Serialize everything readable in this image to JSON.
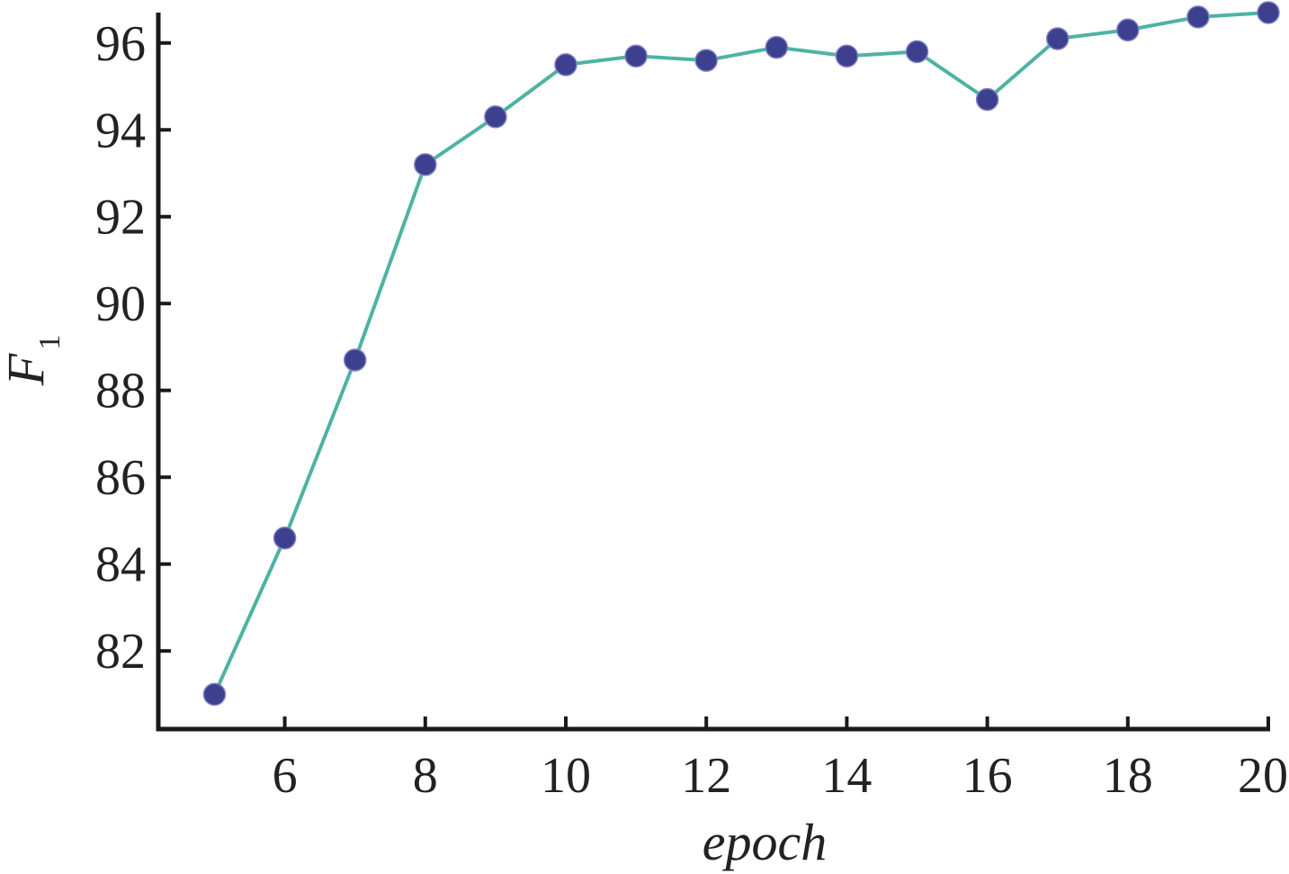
{
  "chart_data": {
    "type": "line",
    "xlabel": "epoch",
    "ylabel": "F",
    "ylabel_subscript": "1",
    "x": [
      5,
      6,
      7,
      8,
      9,
      10,
      11,
      12,
      13,
      14,
      15,
      16,
      17,
      18,
      19,
      20
    ],
    "series": [
      {
        "values": [
          81.0,
          84.6,
          88.7,
          93.2,
          94.3,
          95.5,
          95.7,
          95.6,
          95.9,
          95.7,
          95.8,
          94.7,
          96.1,
          96.3,
          96.6,
          96.7
        ]
      }
    ],
    "xlim": [
      4.2,
      20
    ],
    "ylim": [
      80.2,
      96.7
    ],
    "xticks": [
      6,
      8,
      10,
      12,
      14,
      16,
      18,
      20
    ],
    "yticks": [
      82,
      84,
      86,
      88,
      90,
      92,
      94,
      96
    ],
    "grid": false,
    "legend": "none",
    "colors": {
      "line": "#4db3a3",
      "marker": "#3d3f8f",
      "axis": "#1a1a1a",
      "text": "#222222"
    }
  }
}
